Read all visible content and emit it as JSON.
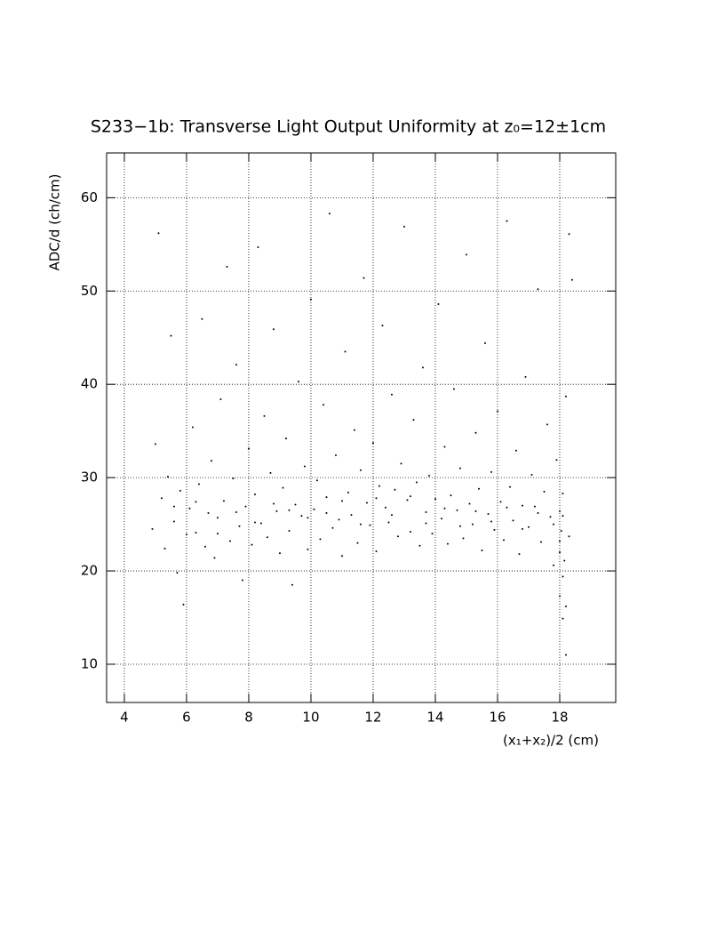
{
  "chart_data": {
    "type": "scatter",
    "title": "S233−1b: Transverse Light Output Uniformity at z₀=12±1cm",
    "x_label": "(x₁+x₂)/2 (cm)",
    "y_label": "ADC/d (ch/cm)",
    "color": "#000000",
    "grid": true,
    "xlim": [
      3.43,
      19.8
    ],
    "ylim": [
      5.9,
      64.8
    ],
    "xticks": [
      4,
      6,
      8,
      10,
      12,
      14,
      16,
      18
    ],
    "yticks": [
      10,
      20,
      30,
      40,
      50,
      60
    ],
    "x": [
      4.9,
      5.0,
      5.1,
      5.2,
      5.3,
      5.4,
      5.5,
      5.6,
      5.7,
      5.8,
      5.9,
      6.0,
      6.1,
      6.2,
      6.3,
      6.4,
      6.5,
      6.6,
      6.7,
      6.8,
      6.9,
      7.0,
      7.1,
      7.2,
      7.3,
      7.4,
      7.5,
      7.6,
      7.7,
      7.8,
      7.9,
      8.0,
      8.1,
      8.2,
      8.3,
      8.4,
      8.5,
      8.6,
      8.7,
      8.8,
      8.9,
      9.0,
      9.1,
      9.2,
      9.3,
      9.4,
      9.5,
      9.6,
      9.7,
      9.8,
      9.9,
      10.0,
      10.1,
      10.2,
      10.3,
      10.4,
      10.5,
      10.6,
      10.7,
      10.8,
      10.9,
      11.0,
      11.1,
      11.2,
      11.3,
      11.4,
      11.5,
      11.6,
      11.7,
      11.8,
      11.9,
      12.0,
      12.1,
      12.2,
      12.3,
      12.4,
      12.5,
      12.6,
      12.7,
      12.8,
      12.9,
      13.0,
      13.1,
      13.2,
      13.3,
      13.4,
      13.5,
      13.6,
      13.7,
      13.8,
      13.9,
      14.0,
      14.1,
      14.2,
      14.3,
      14.4,
      14.5,
      14.6,
      14.7,
      14.8,
      14.9,
      15.0,
      15.1,
      15.2,
      15.3,
      15.4,
      15.5,
      15.6,
      15.7,
      15.8,
      15.9,
      16.0,
      16.1,
      16.2,
      16.3,
      16.4,
      16.5,
      16.6,
      16.7,
      16.8,
      16.9,
      17.0,
      17.1,
      17.2,
      17.3,
      17.4,
      17.5,
      17.6,
      17.7,
      17.8,
      17.9,
      18.0,
      18.0,
      18.0,
      18.05,
      18.1,
      18.1,
      18.1,
      18.15,
      18.2,
      18.2,
      18.3,
      18.3,
      18.4,
      18.2,
      5.6,
      6.3,
      7.0,
      7.6,
      8.2,
      8.8,
      9.3,
      9.9,
      10.5,
      11.0,
      11.6,
      12.1,
      12.6,
      13.2,
      13.7,
      14.3,
      14.8,
      15.3,
      15.8,
      16.3,
      16.8,
      17.3,
      17.8,
      18.1,
      18.0
    ],
    "values": [
      24.5,
      33.6,
      56.2,
      27.8,
      22.4,
      30.1,
      45.2,
      25.3,
      19.8,
      28.6,
      16.4,
      23.9,
      26.7,
      35.4,
      24.1,
      29.3,
      47.0,
      22.6,
      26.2,
      31.8,
      21.4,
      25.7,
      38.4,
      27.5,
      52.6,
      23.2,
      29.9,
      42.1,
      24.8,
      19.0,
      26.9,
      33.1,
      22.8,
      28.2,
      54.7,
      25.1,
      36.6,
      23.6,
      30.5,
      45.9,
      26.4,
      21.9,
      28.9,
      34.2,
      24.3,
      18.5,
      27.1,
      40.3,
      25.9,
      31.2,
      22.3,
      49.1,
      26.6,
      29.7,
      23.4,
      37.8,
      27.9,
      58.3,
      24.6,
      32.4,
      25.5,
      21.6,
      43.5,
      28.4,
      26.0,
      35.1,
      23.0,
      30.8,
      51.4,
      27.3,
      24.9,
      33.7,
      22.1,
      29.1,
      46.3,
      26.8,
      25.2,
      38.9,
      28.7,
      23.7,
      31.5,
      56.9,
      27.6,
      24.2,
      36.2,
      29.5,
      22.7,
      41.8,
      26.3,
      30.2,
      24.0,
      27.7,
      48.6,
      25.6,
      33.3,
      22.9,
      28.1,
      39.5,
      26.5,
      31.0,
      23.5,
      53.9,
      27.2,
      25.0,
      34.8,
      28.8,
      22.2,
      44.4,
      26.1,
      30.6,
      24.4,
      37.1,
      27.4,
      23.3,
      57.5,
      29.0,
      25.4,
      32.9,
      21.8,
      27.0,
      40.8,
      24.7,
      30.3,
      26.9,
      50.2,
      23.1,
      28.5,
      35.7,
      25.8,
      20.6,
      31.9,
      26.4,
      22.0,
      17.3,
      24.3,
      14.9,
      19.4,
      28.3,
      21.1,
      16.2,
      38.7,
      56.1,
      23.7,
      51.2,
      11.0,
      26.9,
      27.4,
      24.0,
      26.3,
      25.2,
      27.2,
      26.5,
      25.7,
      26.2,
      27.5,
      25.0,
      27.8,
      26.0,
      28.0,
      25.1,
      26.7,
      24.8,
      26.4,
      25.3,
      26.8,
      24.5,
      26.2,
      25.0,
      25.9,
      23.2
    ]
  }
}
